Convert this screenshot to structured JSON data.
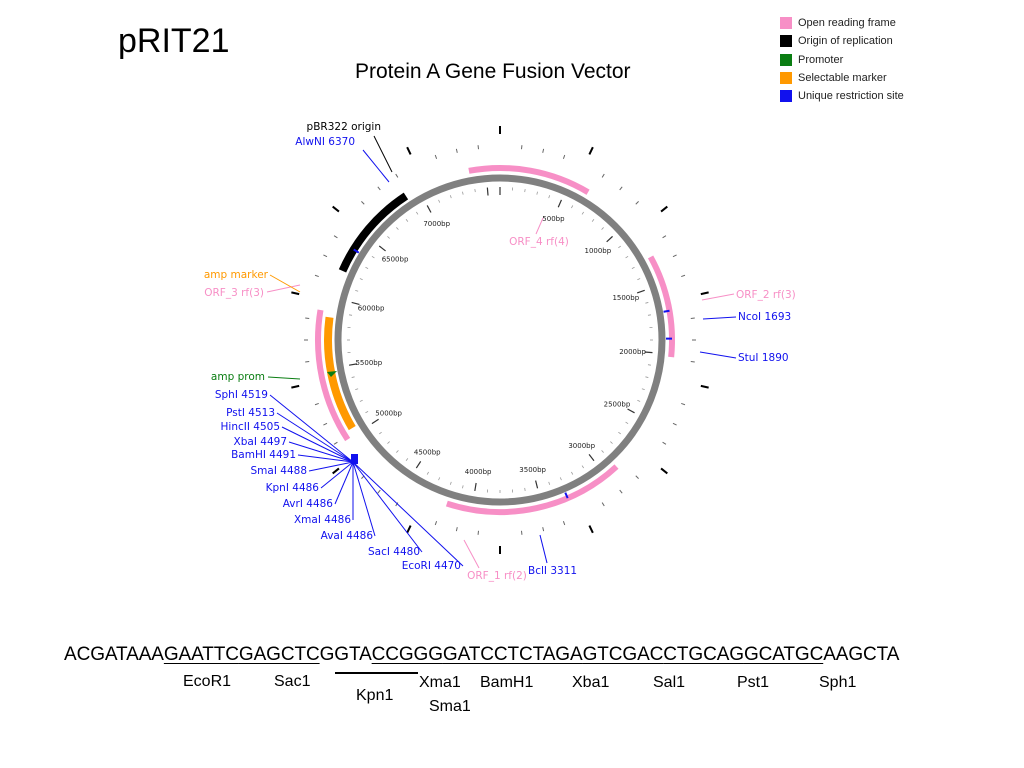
{
  "title": "pRIT21",
  "subtitle": "Protein A Gene Fusion Vector",
  "legend": [
    {
      "label": "Open reading frame",
      "color": "#f78fc6"
    },
    {
      "label": "Origin of replication",
      "color": "#000000"
    },
    {
      "label": "Promoter",
      "color": "#0a7d12"
    },
    {
      "label": "Selectable marker",
      "color": "#ff9900"
    },
    {
      "label": "Unique restriction site",
      "color": "#1111ee"
    }
  ],
  "map": {
    "total_bp": 7600,
    "bp_ticks": [
      "500bp",
      "1000bp",
      "1500bp",
      "2000bp",
      "2500bp",
      "3000bp",
      "3500bp",
      "4000bp",
      "4500bp",
      "5000bp",
      "5500bp",
      "6000bp",
      "6500bp",
      "7000bp"
    ],
    "features": [
      {
        "label": "pBR322 origin",
        "kind": "origin",
        "color": "#000000"
      },
      {
        "label": "ORF_4 rf(4)",
        "kind": "orf",
        "color": "#f78fc6"
      },
      {
        "label": "ORF_2 rf(3)",
        "kind": "orf",
        "color": "#f78fc6"
      },
      {
        "label": "ORF_1 rf(2)",
        "kind": "orf",
        "color": "#f78fc6"
      },
      {
        "label": "ORF_3 rf(3)",
        "kind": "orf",
        "color": "#f78fc6"
      },
      {
        "label": "amp marker",
        "kind": "marker",
        "color": "#ff9900"
      },
      {
        "label": "amp prom",
        "kind": "promoter",
        "color": "#0a7d12"
      }
    ],
    "sites": [
      {
        "label": "AlwNI 6370",
        "bp": 6370
      },
      {
        "label": "NcoI 1693",
        "bp": 1693
      },
      {
        "label": "StuI 1890",
        "bp": 1890
      },
      {
        "label": "BclI 3311",
        "bp": 3311
      },
      {
        "label": "SphI 4519",
        "bp": 4519
      },
      {
        "label": "PstI 4513",
        "bp": 4513
      },
      {
        "label": "HincII 4505",
        "bp": 4505
      },
      {
        "label": "XbaI 4497",
        "bp": 4497
      },
      {
        "label": "BamHI 4491",
        "bp": 4491
      },
      {
        "label": "SmaI 4488",
        "bp": 4488
      },
      {
        "label": "KpnI 4486",
        "bp": 4486
      },
      {
        "label": "AvrI 4486",
        "bp": 4486
      },
      {
        "label": "XmaI 4486",
        "bp": 4486
      },
      {
        "label": "AvaI 4486",
        "bp": 4486
      },
      {
        "label": "SacI 4480",
        "bp": 4480
      },
      {
        "label": "EcoRI 4470",
        "bp": 4470
      }
    ]
  },
  "sequence": {
    "segments": [
      {
        "text": "ACGATAAA",
        "u": false
      },
      {
        "text": "GAATTC",
        "u": true
      },
      {
        "text": "GAGCTC",
        "u": true
      },
      {
        "text": "GGTA",
        "u": false
      },
      {
        "text": "CCGGG",
        "u": true
      },
      {
        "text": "GATCC",
        "u": true
      },
      {
        "text": "TCTAGA",
        "u": true
      },
      {
        "text": "GTCGAC",
        "u": true
      },
      {
        "text": "CTGCAG",
        "u": true
      },
      {
        "text": "GCATGC",
        "u": true
      },
      {
        "text": "AAGCTA",
        "u": false
      }
    ],
    "sites": [
      "EcoR1",
      "Sac1",
      "Kpn1",
      "Xma1",
      "Sma1",
      "BamH1",
      "Xba1",
      "Sal1",
      "Pst1",
      "Sph1"
    ]
  }
}
